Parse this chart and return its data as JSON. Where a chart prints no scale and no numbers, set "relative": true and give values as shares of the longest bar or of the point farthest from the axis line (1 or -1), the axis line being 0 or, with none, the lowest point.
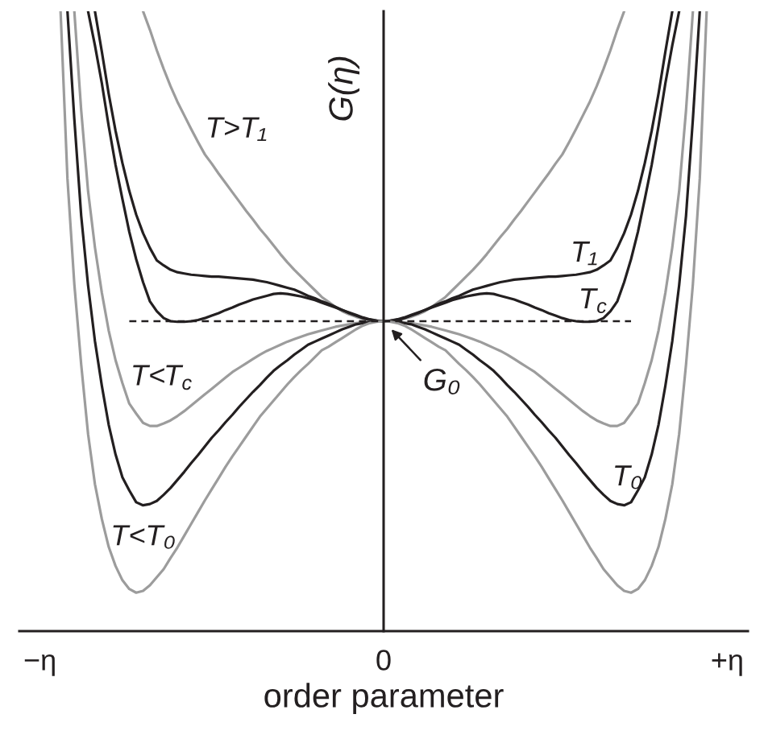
{
  "chart_data": {
    "type": "line",
    "relative": true,
    "xlabel": "order parameter",
    "ylabel": "G(η)",
    "categories": [
      null,
      null,
      null,
      "−η",
      null,
      null,
      null,
      null,
      null,
      null,
      null,
      null,
      null,
      null,
      null,
      null,
      null,
      null,
      null,
      null,
      null,
      null,
      null,
      null,
      null,
      null,
      null,
      null,
      null,
      null,
      null,
      null,
      null,
      null,
      null,
      null,
      null,
      null,
      null,
      null,
      null,
      null,
      null,
      null,
      null,
      null,
      null,
      null,
      null,
      null,
      null,
      null,
      null,
      "0",
      null,
      null,
      null,
      null,
      null,
      null,
      null,
      null,
      null,
      null,
      null,
      null,
      null,
      null,
      null,
      null,
      null,
      null,
      null,
      null,
      null,
      null,
      null,
      null,
      null,
      null,
      null,
      null,
      null,
      null,
      null,
      null,
      null,
      null,
      null,
      null,
      null,
      null,
      null,
      null,
      null,
      null,
      null,
      null,
      null,
      null,
      null,
      null,
      null,
      "+η",
      null,
      null,
      null
    ],
    "series": [
      {
        "name": "T>T₁",
        "color": "#9c9c9c",
        "values": [
          null,
          null,
          null,
          null,
          null,
          null,
          null,
          null,
          null,
          null,
          null,
          null,
          null,
          null,
          null,
          null,
          null,
          null,
          1.0,
          0.97,
          0.937,
          0.907,
          0.879,
          0.854,
          0.832,
          0.81,
          0.789,
          0.769,
          0.754,
          0.738,
          0.723,
          0.708,
          0.693,
          0.678,
          0.664,
          0.649,
          0.636,
          0.622,
          0.608,
          0.595,
          0.583,
          0.572,
          0.561,
          0.55,
          0.539,
          0.531,
          0.523,
          0.516,
          0.511,
          0.507,
          0.504,
          0.502,
          0.5,
          0.5,
          0.5,
          0.502,
          0.504,
          0.507,
          0.511,
          0.516,
          0.523,
          0.531,
          0.539,
          0.55,
          0.561,
          0.572,
          0.583,
          0.595,
          0.608,
          0.622,
          0.636,
          0.649,
          0.664,
          0.678,
          0.693,
          0.708,
          0.723,
          0.738,
          0.754,
          0.769,
          0.789,
          0.81,
          0.832,
          0.854,
          0.879,
          0.907,
          0.937,
          0.97,
          1.0,
          null,
          null,
          null,
          null,
          null,
          null,
          null,
          null,
          null,
          null,
          null,
          null,
          null,
          null,
          null,
          null,
          null,
          null
        ]
      },
      {
        "name": "T₁",
        "color": "#231f20",
        "values": [
          null,
          null,
          null,
          null,
          null,
          null,
          null,
          null,
          null,
          null,
          null,
          1.0,
          0.935,
          0.867,
          0.807,
          0.755,
          0.71,
          0.672,
          0.642,
          0.618,
          0.598,
          0.59,
          0.583,
          0.579,
          0.577,
          0.575,
          0.574,
          0.573,
          0.572,
          0.572,
          0.571,
          0.57,
          0.569,
          0.568,
          0.567,
          0.565,
          0.563,
          0.56,
          0.557,
          0.554,
          0.551,
          0.546,
          0.541,
          0.537,
          0.532,
          0.528,
          0.523,
          0.518,
          0.513,
          0.509,
          0.505,
          0.502,
          0.501,
          0.5,
          0.501,
          0.502,
          0.505,
          0.509,
          0.513,
          0.518,
          0.523,
          0.528,
          0.532,
          0.537,
          0.541,
          0.546,
          0.551,
          0.554,
          0.557,
          0.56,
          0.563,
          0.565,
          0.567,
          0.568,
          0.569,
          0.57,
          0.571,
          0.572,
          0.572,
          0.573,
          0.574,
          0.575,
          0.577,
          0.579,
          0.583,
          0.59,
          0.598,
          0.618,
          0.642,
          0.672,
          0.71,
          0.755,
          0.807,
          0.867,
          0.935,
          1.0,
          null,
          null,
          null,
          null,
          null,
          null,
          null,
          null,
          null,
          null,
          null
        ]
      },
      {
        "name": "T$_{c}$",
        "color": "#231f20",
        "values": [
          null,
          null,
          null,
          null,
          null,
          null,
          null,
          null,
          null,
          null,
          1.0,
          0.945,
          0.884,
          0.815,
          0.752,
          0.697,
          0.644,
          0.6,
          0.563,
          0.532,
          0.516,
          0.505,
          0.5,
          0.499,
          0.499,
          0.5,
          0.502,
          0.505,
          0.509,
          0.513,
          0.518,
          0.522,
          0.527,
          0.531,
          0.535,
          0.538,
          0.541,
          0.544,
          0.545,
          0.544,
          0.542,
          0.54,
          0.537,
          0.534,
          0.53,
          0.526,
          0.522,
          0.518,
          0.514,
          0.51,
          0.506,
          0.503,
          0.501,
          0.5,
          0.501,
          0.503,
          0.506,
          0.51,
          0.514,
          0.518,
          0.522,
          0.526,
          0.53,
          0.534,
          0.537,
          0.54,
          0.542,
          0.544,
          0.545,
          0.544,
          0.541,
          0.538,
          0.535,
          0.531,
          0.527,
          0.522,
          0.518,
          0.513,
          0.509,
          0.505,
          0.502,
          0.5,
          0.499,
          0.499,
          0.5,
          0.505,
          0.516,
          0.532,
          0.563,
          0.6,
          0.644,
          0.697,
          0.752,
          0.815,
          0.884,
          0.945,
          1.0,
          null,
          null,
          null,
          null,
          null,
          null,
          null,
          null,
          null,
          null
        ]
      },
      {
        "name": "T<T$_{c}$",
        "color": "#9c9c9c",
        "values": [
          null,
          null,
          null,
          null,
          null,
          null,
          null,
          null,
          1.0,
          0.84,
          0.71,
          0.619,
          0.546,
          0.485,
          0.437,
          0.4,
          0.367,
          0.351,
          0.336,
          0.331,
          0.331,
          0.335,
          0.34,
          0.347,
          0.355,
          0.364,
          0.373,
          0.382,
          0.391,
          0.4,
          0.409,
          0.418,
          0.425,
          0.432,
          0.439,
          0.446,
          0.452,
          0.457,
          0.462,
          0.467,
          0.471,
          0.475,
          0.479,
          0.482,
          0.485,
          0.488,
          0.491,
          0.493,
          0.495,
          0.497,
          0.498,
          0.499,
          0.5,
          0.5,
          0.5,
          0.499,
          0.498,
          0.497,
          0.495,
          0.493,
          0.491,
          0.488,
          0.485,
          0.482,
          0.479,
          0.475,
          0.471,
          0.467,
          0.462,
          0.457,
          0.452,
          0.446,
          0.439,
          0.432,
          0.425,
          0.418,
          0.409,
          0.4,
          0.391,
          0.382,
          0.373,
          0.364,
          0.355,
          0.347,
          0.34,
          0.335,
          0.331,
          0.331,
          0.336,
          0.351,
          0.367,
          0.4,
          0.437,
          0.485,
          0.546,
          0.619,
          0.71,
          0.84,
          1.0,
          null,
          null,
          null,
          null,
          null,
          null,
          null,
          null
        ]
      },
      {
        "name": "T₀",
        "color": "#231f20",
        "values": [
          null,
          null,
          null,
          null,
          null,
          null,
          null,
          1.0,
          0.826,
          0.67,
          0.558,
          0.468,
          0.396,
          0.333,
          0.285,
          0.248,
          0.227,
          0.208,
          0.203,
          0.205,
          0.21,
          0.22,
          0.231,
          0.244,
          0.257,
          0.271,
          0.284,
          0.298,
          0.312,
          0.324,
          0.337,
          0.349,
          0.362,
          0.374,
          0.386,
          0.397,
          0.409,
          0.42,
          0.429,
          0.437,
          0.446,
          0.454,
          0.462,
          0.467,
          0.472,
          0.477,
          0.482,
          0.487,
          0.491,
          0.495,
          0.497,
          0.499,
          0.5,
          0.5,
          0.5,
          0.499,
          0.497,
          0.495,
          0.491,
          0.487,
          0.482,
          0.477,
          0.472,
          0.467,
          0.462,
          0.454,
          0.446,
          0.437,
          0.429,
          0.42,
          0.409,
          0.397,
          0.386,
          0.374,
          0.362,
          0.349,
          0.337,
          0.324,
          0.312,
          0.298,
          0.284,
          0.271,
          0.257,
          0.244,
          0.231,
          0.22,
          0.21,
          0.205,
          0.203,
          0.208,
          0.227,
          0.248,
          0.285,
          0.333,
          0.396,
          0.468,
          0.558,
          0.67,
          0.826,
          1.0,
          null,
          null,
          null,
          null,
          null,
          null,
          null
        ]
      },
      {
        "name": "T<T₀",
        "color": "#9c9c9c",
        "values": [
          null,
          null,
          null,
          null,
          null,
          null,
          1.0,
          0.73,
          0.56,
          0.43,
          0.318,
          0.237,
          0.181,
          0.136,
          0.105,
          0.082,
          0.068,
          0.062,
          0.065,
          0.074,
          0.087,
          0.1,
          0.118,
          0.135,
          0.154,
          0.173,
          0.192,
          0.211,
          0.229,
          0.247,
          0.265,
          0.282,
          0.298,
          0.314,
          0.33,
          0.346,
          0.359,
          0.372,
          0.385,
          0.398,
          0.41,
          0.421,
          0.431,
          0.442,
          0.453,
          0.459,
          0.466,
          0.473,
          0.48,
          0.487,
          0.493,
          0.497,
          0.499,
          0.5,
          0.499,
          0.497,
          0.493,
          0.487,
          0.48,
          0.473,
          0.466,
          0.459,
          0.453,
          0.442,
          0.431,
          0.421,
          0.41,
          0.398,
          0.385,
          0.372,
          0.359,
          0.346,
          0.33,
          0.314,
          0.298,
          0.282,
          0.265,
          0.247,
          0.229,
          0.211,
          0.192,
          0.173,
          0.154,
          0.135,
          0.118,
          0.1,
          0.087,
          0.074,
          0.065,
          0.062,
          0.068,
          0.082,
          0.105,
          0.136,
          0.181,
          0.237,
          0.318,
          0.43,
          0.56,
          0.73,
          1.0,
          null,
          null,
          null,
          null,
          null,
          null
        ]
      },
      {
        "color": "#231f20",
        "line_style": "dashed",
        "values": [
          null,
          null,
          null,
          null,
          null,
          null,
          null,
          null,
          null,
          null,
          null,
          null,
          null,
          null,
          null,
          null,
          0.5,
          0.5,
          0.5,
          0.5,
          0.5,
          0.5,
          0.5,
          0.5,
          0.5,
          0.5,
          0.5,
          0.5,
          0.5,
          0.5,
          0.5,
          0.5,
          0.5,
          0.5,
          0.5,
          0.5,
          0.5,
          0.5,
          0.5,
          0.5,
          0.5,
          0.5,
          0.5,
          0.5,
          0.5,
          0.5,
          0.5,
          0.5,
          0.5,
          0.5,
          0.5,
          0.5,
          0.5,
          0.5,
          0.5,
          0.5,
          0.5,
          0.5,
          0.5,
          0.5,
          0.5,
          0.5,
          0.5,
          0.5,
          0.5,
          0.5,
          0.5,
          0.5,
          0.5,
          0.5,
          0.5,
          0.5,
          0.5,
          0.5,
          0.5,
          0.5,
          0.5,
          0.5,
          0.5,
          0.5,
          0.5,
          0.5,
          0.5,
          0.5,
          0.5,
          0.5,
          0.5,
          0.5,
          0.5,
          0.5,
          null,
          null,
          null,
          null,
          null,
          null,
          null,
          null,
          null,
          null,
          null,
          null,
          null,
          null,
          null,
          null,
          null
        ]
      }
    ],
    "annotations": [
      {
        "text": "G₀",
        "x": "0",
        "y": 0.5
      }
    ]
  }
}
